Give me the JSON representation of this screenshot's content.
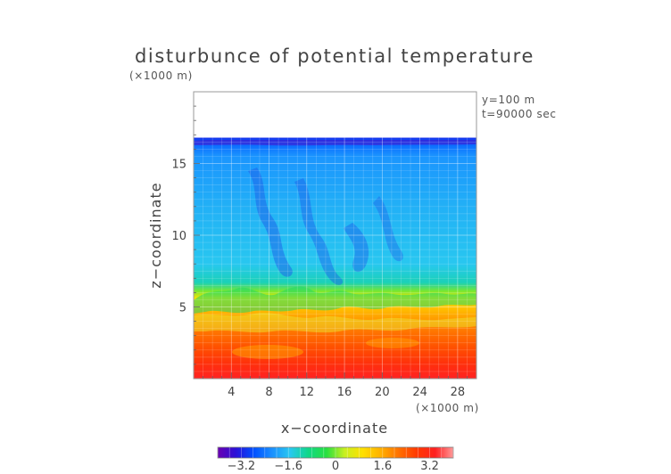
{
  "chart_data": {
    "type": "heatmap",
    "title": "disturbunce of potential temperature",
    "scale_note_top": "(×1000 m)",
    "scale_note_bottom": "(×1000 m)",
    "info_lines": [
      "y=100 m",
      "t=90000 sec"
    ],
    "xlabel": "x−coordinate",
    "ylabel": "z−coordinate",
    "xlim": [
      0,
      30
    ],
    "ylim": [
      0,
      20
    ],
    "x_ticks": [
      4,
      8,
      12,
      16,
      20,
      24,
      28
    ],
    "x_tick_labels": [
      "4",
      "8",
      "12",
      "16",
      "20",
      "24",
      "28"
    ],
    "y_ticks": [
      5,
      10,
      15
    ],
    "y_tick_labels": [
      "5",
      "10",
      "15"
    ],
    "grid": true,
    "colorbar": {
      "range": [
        -4,
        4
      ],
      "ticks": [
        -3.2,
        -1.6,
        0,
        1.6,
        3.2
      ],
      "tick_labels": [
        "−3.2",
        "−1.6",
        "0",
        "1.6",
        "3.2"
      ],
      "colors": [
        "#6a00b0",
        "#2a10d8",
        "#0050ff",
        "#1a90ff",
        "#28c8f0",
        "#10d888",
        "#28e040",
        "#c8f020",
        "#ffe000",
        "#ffb000",
        "#ff7000",
        "#ff3800",
        "#ff2020",
        "#ff9a9a"
      ]
    },
    "field_top_z": 16.8,
    "profile": [
      {
        "z": 0,
        "value": 3.4
      },
      {
        "z": 1.0,
        "value": 3.0
      },
      {
        "z": 2.2,
        "value": 2.5
      },
      {
        "z": 3.6,
        "value": 2.0
      },
      {
        "z": 4.8,
        "value": 1.4
      },
      {
        "z": 5.6,
        "value": 0.9
      },
      {
        "z": 6.1,
        "value": 0.0
      },
      {
        "z": 6.7,
        "value": -1.2
      },
      {
        "z": 8.0,
        "value": -1.55
      },
      {
        "z": 12.0,
        "value": -1.8
      },
      {
        "z": 15.5,
        "value": -2.1
      },
      {
        "z": 16.5,
        "value": -2.6
      },
      {
        "z": 16.8,
        "value": -3.1
      }
    ]
  }
}
